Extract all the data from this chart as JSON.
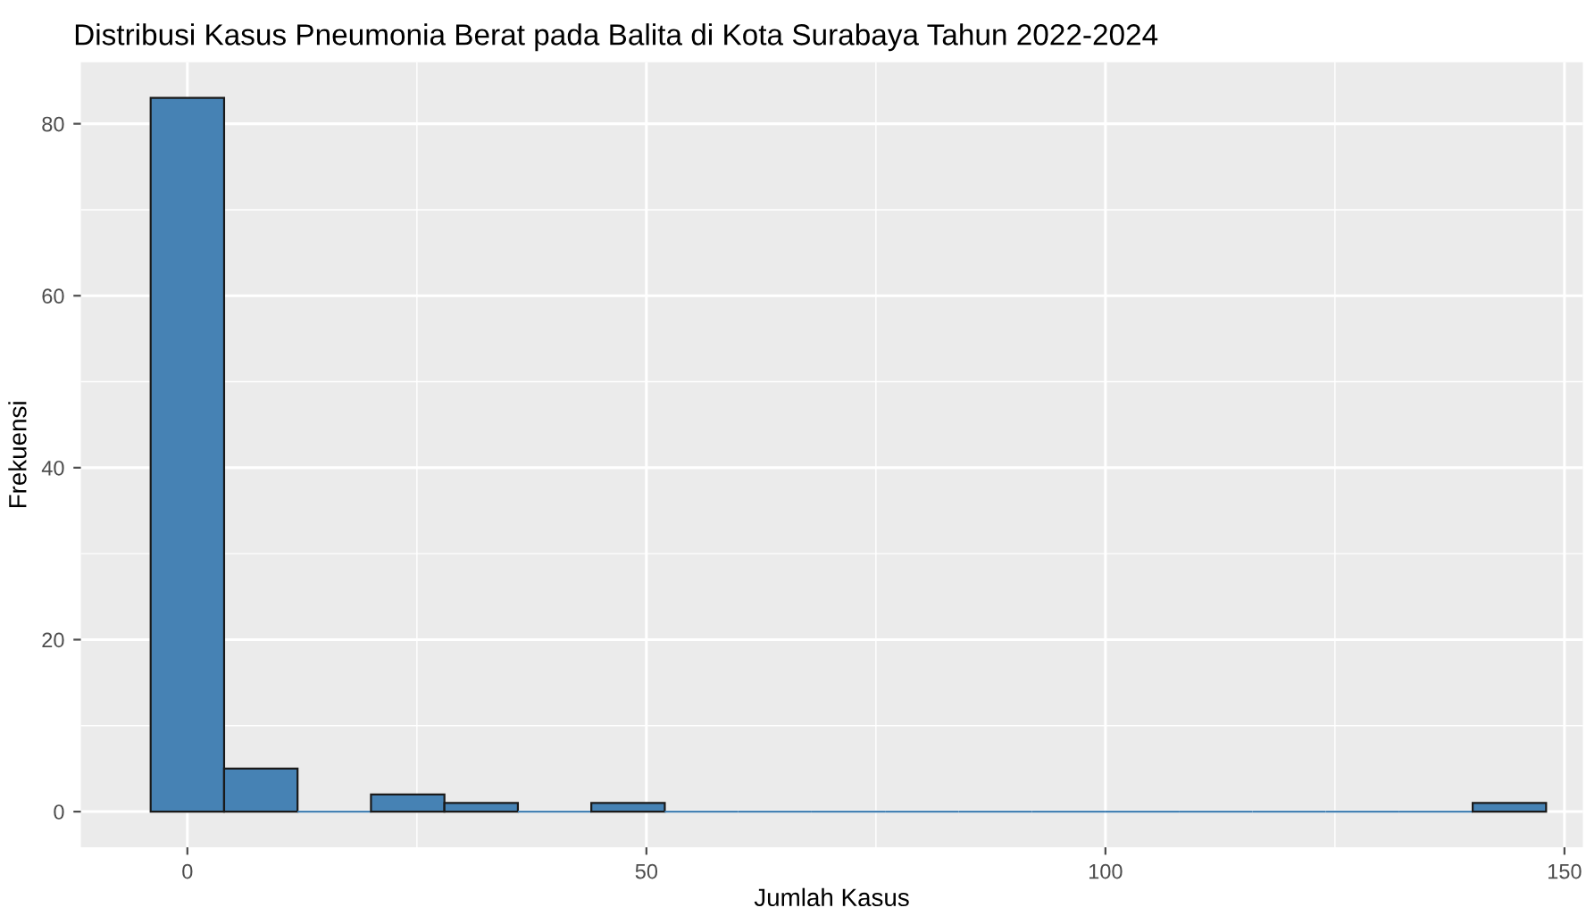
{
  "chart_data": {
    "type": "histogram",
    "title": "Distribusi Kasus Pneumonia Berat pada Balita di Kota Surabaya Tahun 2022-2024",
    "xlabel": "Jumlah Kasus",
    "ylabel": "Frekuensi",
    "bins": [
      -4,
      4,
      12,
      20,
      28,
      36,
      44,
      52,
      60,
      68,
      76,
      84,
      92,
      100,
      108,
      116,
      124,
      132,
      140,
      148
    ],
    "values": [
      83,
      5,
      0,
      2,
      1,
      0,
      1,
      0,
      0,
      0,
      0,
      0,
      0,
      0,
      0,
      0,
      0,
      0,
      1
    ],
    "color": "#4682b4",
    "xlim": [
      -11.6,
      152
    ],
    "xticks": [
      0,
      50,
      100,
      150
    ],
    "ylim": [
      -4.15,
      87.15
    ],
    "yticks": [
      0,
      20,
      40,
      60,
      80
    ],
    "grid": true
  }
}
